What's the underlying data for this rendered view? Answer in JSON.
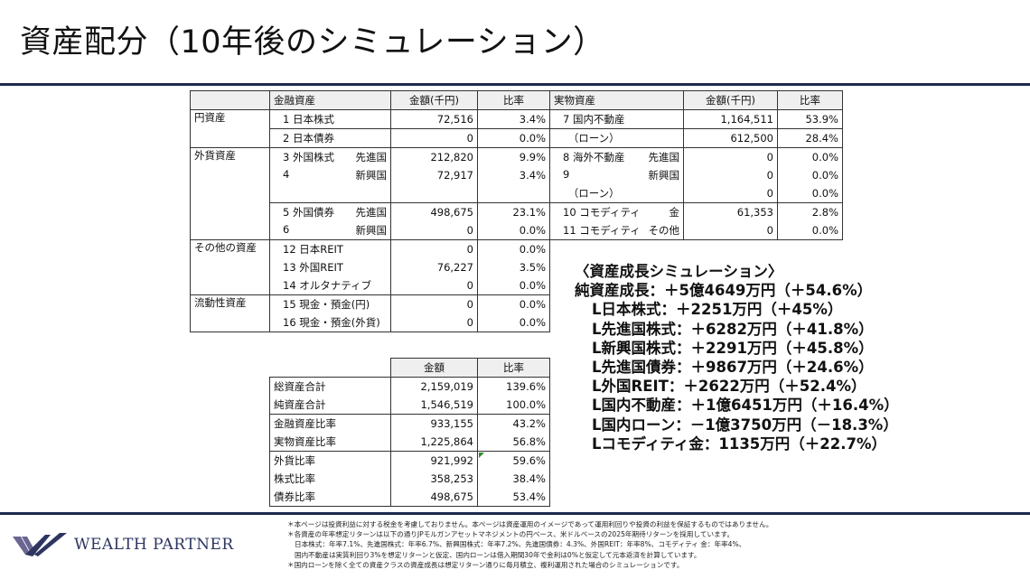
{
  "title": "資産配分（10年後のシミュレーション）",
  "main_table": {
    "headers": [
      "",
      "金融資産",
      "金額(千円)",
      "比率"
    ],
    "groups": [
      {
        "category": "円資産",
        "subgroups": [
          [
            {
              "name": "1 日本株式",
              "region": "",
              "amount": "72,516",
              "ratio": "3.4%"
            }
          ],
          [
            {
              "name": "2 日本債券",
              "region": "",
              "amount": "0",
              "ratio": "0.0%"
            }
          ]
        ]
      },
      {
        "category": "外貨資産",
        "subgroups": [
          [
            {
              "name": "3 外国株式",
              "region": "先進国",
              "amount": "212,820",
              "ratio": "9.9%"
            },
            {
              "name": "4",
              "region": "新興国",
              "amount": "72,917",
              "ratio": "3.4%"
            },
            {
              "name": "",
              "region": "",
              "amount": "",
              "ratio": ""
            }
          ],
          [
            {
              "name": "5 外国債券",
              "region": "先進国",
              "amount": "498,675",
              "ratio": "23.1%"
            },
            {
              "name": "6",
              "region": "新興国",
              "amount": "0",
              "ratio": "0.0%"
            }
          ]
        ]
      },
      {
        "category": "その他の資産",
        "subgroups": [
          [
            {
              "name": "12 日本REIT",
              "region": "",
              "amount": "0",
              "ratio": "0.0%"
            },
            {
              "name": "13 外国REIT",
              "region": "",
              "amount": "76,227",
              "ratio": "3.5%"
            },
            {
              "name": "14 オルタナティブ",
              "region": "",
              "amount": "0",
              "ratio": "0.0%"
            }
          ]
        ]
      },
      {
        "category": "流動性資産",
        "subgroups": [
          [
            {
              "name": "15 現金・預金(円)",
              "region": "",
              "amount": "0",
              "ratio": "0.0%"
            },
            {
              "name": "16 現金・預金(外貨)",
              "region": "",
              "amount": "0",
              "ratio": "0.0%"
            }
          ]
        ]
      }
    ]
  },
  "real_table": {
    "headers": [
      "実物資産",
      "金額(千円)",
      "比率"
    ],
    "subgroups": [
      [
        {
          "name": "7 国内不動産",
          "region": "",
          "amount": "1,164,511",
          "ratio": "53.9%"
        }
      ],
      [
        {
          "name": "　（ローン）",
          "region": "",
          "amount": "612,500",
          "ratio": "28.4%"
        }
      ],
      [
        {
          "name": "8 海外不動産",
          "region": "先進国",
          "amount": "0",
          "ratio": "0.0%"
        },
        {
          "name": "9",
          "region": "新興国",
          "amount": "0",
          "ratio": "0.0%"
        },
        {
          "name": "　（ローン）",
          "region": "",
          "amount": "0",
          "ratio": "0.0%"
        }
      ],
      [
        {
          "name": "10 コモディティ",
          "region": "金",
          "amount": "61,353",
          "ratio": "2.8%"
        },
        {
          "name": "11 コモディティ",
          "region": "その他",
          "amount": "0",
          "ratio": "0.0%"
        }
      ]
    ]
  },
  "summary_table": {
    "headers": [
      "",
      "金額",
      "比率"
    ],
    "subgroups": [
      [
        {
          "label": "総資産合計",
          "amount": "2,159,019",
          "ratio": "139.6%"
        },
        {
          "label": "純資産合計",
          "amount": "1,546,519",
          "ratio": "100.0%"
        }
      ],
      [
        {
          "label": "金融資産比率",
          "amount": "933,155",
          "ratio": "43.2%"
        },
        {
          "label": "実物資産比率",
          "amount": "1,225,864",
          "ratio": "56.8%"
        }
      ],
      [
        {
          "label": "外貨比率",
          "amount": "921,992",
          "ratio": "59.6%"
        },
        {
          "label": "株式比率",
          "amount": "358,253",
          "ratio": "38.4%"
        },
        {
          "label": "債券比率",
          "amount": "498,675",
          "ratio": "53.4%"
        }
      ]
    ]
  },
  "simulation": {
    "heading": "〈資産成長シミュレーション〉",
    "total": "純資産成長：＋5億4649万円（＋54.6%）",
    "items": [
      "L日本株式：＋2251万円（＋45%）",
      "L先進国株式：＋6282万円（＋41.8%）",
      "L新興国株式：＋2291万円（＋45.8%）",
      "L先進国債券：＋9867万円（＋24.6%）",
      "L外国REIT：＋2622万円（＋52.4%）",
      "L国内不動産：＋1億6451万円（＋16.4%）",
      "L国内ローン：－1億3750万円（－18.3%）",
      "Lコモディティ金：1135万円（＋22.7%）"
    ]
  },
  "notes": [
    "＊本ページは投資利益に対する税金を考慮しておりません。本ページは資産運用のイメージであって運用利回りや投資の利益を保証するものではありません。",
    "＊各資産の年率想定リターンは以下の通りJPモルガンアセットマネジメントの円ベース、米ドルベースの2025年期待リターンを採用しています。",
    "日本株式：年率7.1%、先進国株式：年率6.7%、新興国株式：年率7.2%、先進国債券：4.3%、外国REIT：年率8%、コモディティ 金：年率4%、",
    "国内不動産は実質利回り3%を想定リターンと仮定、国内ローンは借入期間30年で金利は0%と仮定して元本返済を計算しています。",
    "＊国内ローンを除く全ての資産クラスの資産成長は想定リターン通りに毎月積立、複利運用された場合のシミュレーションです。"
  ],
  "logo": {
    "text": "WEALTH PARTNER"
  },
  "colors": {
    "navy": "#1c2a4d",
    "logo": "#2d3560"
  }
}
